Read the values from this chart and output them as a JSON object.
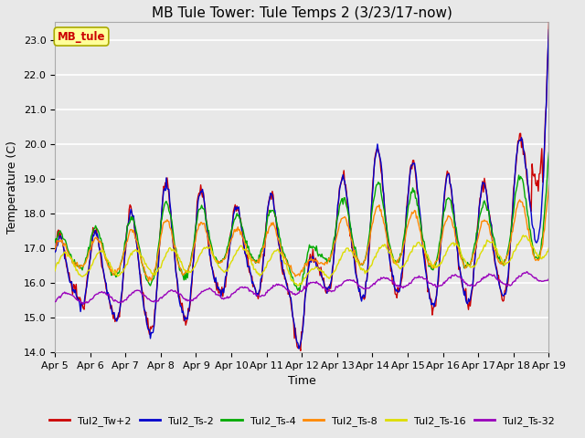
{
  "title": "MB Tule Tower: Tule Temps 2 (3/23/17-now)",
  "xlabel": "Time",
  "ylabel": "Temperature (C)",
  "ylim": [
    14.0,
    23.5
  ],
  "yticks": [
    14.0,
    15.0,
    16.0,
    17.0,
    18.0,
    19.0,
    20.0,
    21.0,
    22.0,
    23.0
  ],
  "xlim": [
    0,
    14
  ],
  "xtick_labels": [
    "Apr 5",
    "Apr 6",
    "Apr 7",
    "Apr 8",
    "Apr 9",
    "Apr 10",
    "Apr 11",
    "Apr 12",
    "Apr 13",
    "Apr 14",
    "Apr 15",
    "Apr 16",
    "Apr 17",
    "Apr 18",
    "Apr 19"
  ],
  "legend_label": "MB_tule",
  "series_labels": [
    "Tul2_Tw+2",
    "Tul2_Ts-2",
    "Tul2_Ts-4",
    "Tul2_Ts-8",
    "Tul2_Ts-16",
    "Tul2_Ts-32"
  ],
  "series_colors": [
    "#cc0000",
    "#0000cc",
    "#00aa00",
    "#ff8800",
    "#dddd00",
    "#9900bb"
  ],
  "background_color": "#e8e8e8",
  "plot_bg_color": "#e8e8e8",
  "grid_color": "#ffffff",
  "title_fontsize": 11,
  "axis_fontsize": 9,
  "tick_fontsize": 8,
  "figwidth": 6.4,
  "figheight": 4.8,
  "dpi": 100
}
